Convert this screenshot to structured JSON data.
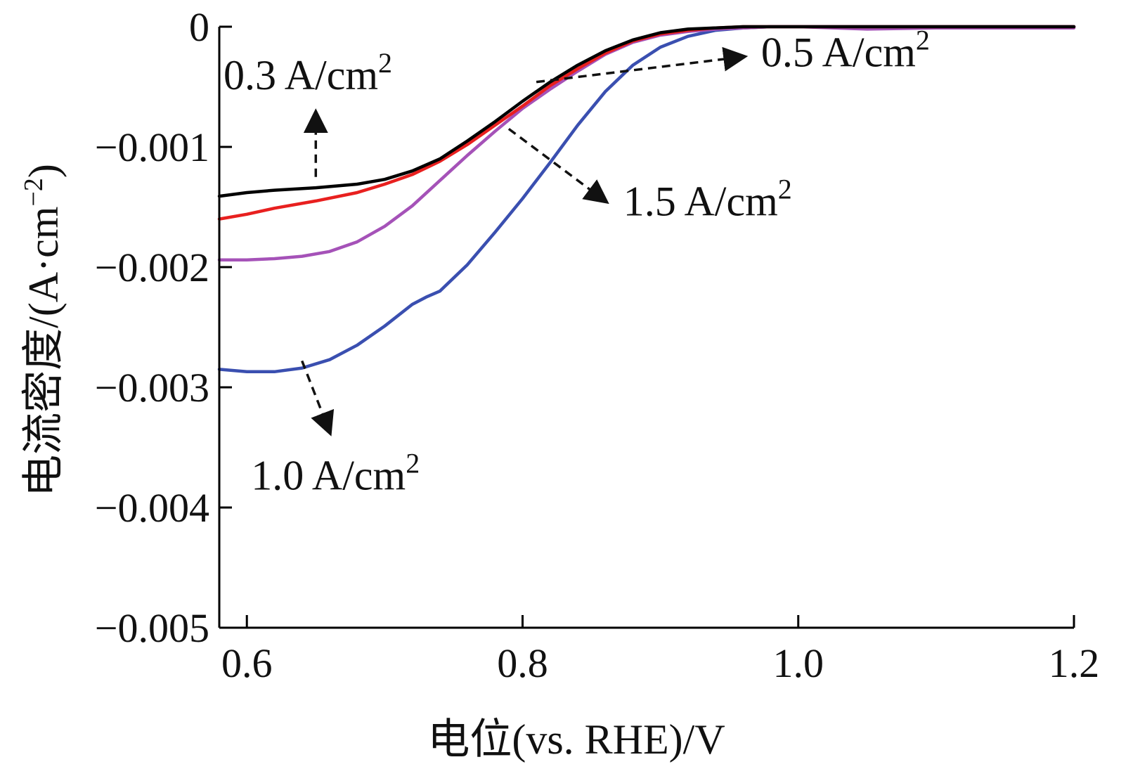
{
  "chart_data": {
    "type": "line",
    "title": "",
    "xlabel": "电位(vs. RHE)/V",
    "ylabel_main": "电流密度/(A·cm",
    "ylabel_sup": "−2",
    "ylabel_close": ")",
    "xlim": [
      0.58,
      1.2
    ],
    "ylim": [
      -0.005,
      0
    ],
    "x_ticks": [
      {
        "value": 0.6,
        "label": "0.6"
      },
      {
        "value": 0.8,
        "label": "0.8"
      },
      {
        "value": 1.0,
        "label": "1.0"
      },
      {
        "value": 1.2,
        "label": "1.2"
      }
    ],
    "y_ticks": [
      {
        "value": 0,
        "label": "0"
      },
      {
        "value": -0.001,
        "label": "−0.001"
      },
      {
        "value": -0.002,
        "label": "−0.002"
      },
      {
        "value": -0.003,
        "label": "−0.003"
      },
      {
        "value": -0.004,
        "label": "−0.004"
      },
      {
        "value": -0.005,
        "label": "−0.005"
      }
    ],
    "grid": false,
    "series": [
      {
        "name": "0.3 A/cm2",
        "color": "#000000",
        "x": [
          0.58,
          0.6,
          0.62,
          0.65,
          0.68,
          0.7,
          0.72,
          0.74,
          0.76,
          0.78,
          0.8,
          0.82,
          0.84,
          0.86,
          0.88,
          0.9,
          0.92,
          0.94,
          0.96,
          0.98,
          1.0,
          1.05,
          1.1,
          1.15,
          1.2
        ],
        "y": [
          -0.00141,
          -0.00138,
          -0.00136,
          -0.00134,
          -0.00131,
          -0.00127,
          -0.0012,
          -0.0011,
          -0.00095,
          -0.00079,
          -0.00062,
          -0.00046,
          -0.00032,
          -0.0002,
          -0.00011,
          -5e-05,
          -2e-05,
          -1e-05,
          0,
          0,
          0,
          0,
          0,
          0,
          0
        ]
      },
      {
        "name": "0.5 A/cm2",
        "color": "#e8201f",
        "x": [
          0.58,
          0.6,
          0.62,
          0.65,
          0.68,
          0.7,
          0.72,
          0.74,
          0.76,
          0.78,
          0.8,
          0.82,
          0.84,
          0.86,
          0.88,
          0.9,
          0.92,
          0.94,
          0.96,
          0.98,
          1.0,
          1.05,
          1.1,
          1.15,
          1.2
        ],
        "y": [
          -0.0016,
          -0.00156,
          -0.00151,
          -0.00145,
          -0.00138,
          -0.00131,
          -0.00123,
          -0.00112,
          -0.00098,
          -0.00082,
          -0.00066,
          -0.00049,
          -0.00035,
          -0.00022,
          -0.00012,
          -6e-05,
          -3e-05,
          -1e-05,
          0,
          0,
          0,
          0,
          0,
          0,
          0
        ]
      },
      {
        "name": "1.5 A/cm2",
        "color": "#a552b8",
        "x": [
          0.58,
          0.6,
          0.62,
          0.64,
          0.66,
          0.68,
          0.7,
          0.72,
          0.74,
          0.76,
          0.78,
          0.8,
          0.82,
          0.84,
          0.86,
          0.88,
          0.9,
          0.92,
          0.94,
          0.96,
          0.98,
          1.0,
          1.05,
          1.1,
          1.2
        ],
        "y": [
          -0.00194,
          -0.00194,
          -0.00193,
          -0.00191,
          -0.00187,
          -0.00179,
          -0.00166,
          -0.00149,
          -0.00128,
          -0.00107,
          -0.00087,
          -0.00068,
          -0.00052,
          -0.00037,
          -0.00023,
          -0.00013,
          -7e-05,
          -4e-05,
          -2e-05,
          -1e-05,
          0,
          0,
          -2e-05,
          -1e-05,
          -1e-05
        ]
      },
      {
        "name": "1.0 A/cm2",
        "color": "#3a4fb0",
        "x": [
          0.58,
          0.6,
          0.62,
          0.64,
          0.66,
          0.68,
          0.7,
          0.72,
          0.73,
          0.74,
          0.76,
          0.78,
          0.8,
          0.82,
          0.84,
          0.86,
          0.88,
          0.9,
          0.92,
          0.94,
          0.96,
          0.98,
          1.0,
          1.05,
          1.1,
          1.2
        ],
        "y": [
          -0.00285,
          -0.00287,
          -0.00287,
          -0.00284,
          -0.00277,
          -0.00265,
          -0.00249,
          -0.00231,
          -0.00225,
          -0.0022,
          -0.00198,
          -0.00171,
          -0.00143,
          -0.00113,
          -0.00082,
          -0.00054,
          -0.00032,
          -0.00017,
          -8e-05,
          -3e-05,
          -1e-05,
          0,
          0,
          0,
          0,
          0
        ]
      }
    ],
    "annotations": [
      {
        "text": "0.3 A/cm",
        "sup": "2",
        "text_at": [
          0.58,
          -0.00052
        ],
        "from": [
          0.65,
          -0.00125
        ],
        "to": [
          0.65,
          -0.00072
        ]
      },
      {
        "text": "0.5 A/cm",
        "sup": "2",
        "text_at": [
          0.97,
          -0.00033
        ],
        "from": [
          0.81,
          -0.00046
        ],
        "to": [
          0.96,
          -0.00025
        ]
      },
      {
        "text": "1.5 A/cm",
        "sup": "2",
        "text_at": [
          0.87,
          -0.00157
        ],
        "from": [
          0.79,
          -0.00085
        ],
        "to": [
          0.86,
          -0.00145
        ]
      },
      {
        "text": "1.0 A/cm",
        "sup": "2",
        "text_at": [
          0.6,
          -0.00385
        ],
        "from": [
          0.64,
          -0.00278
        ],
        "to": [
          0.66,
          -0.00337
        ]
      }
    ]
  }
}
